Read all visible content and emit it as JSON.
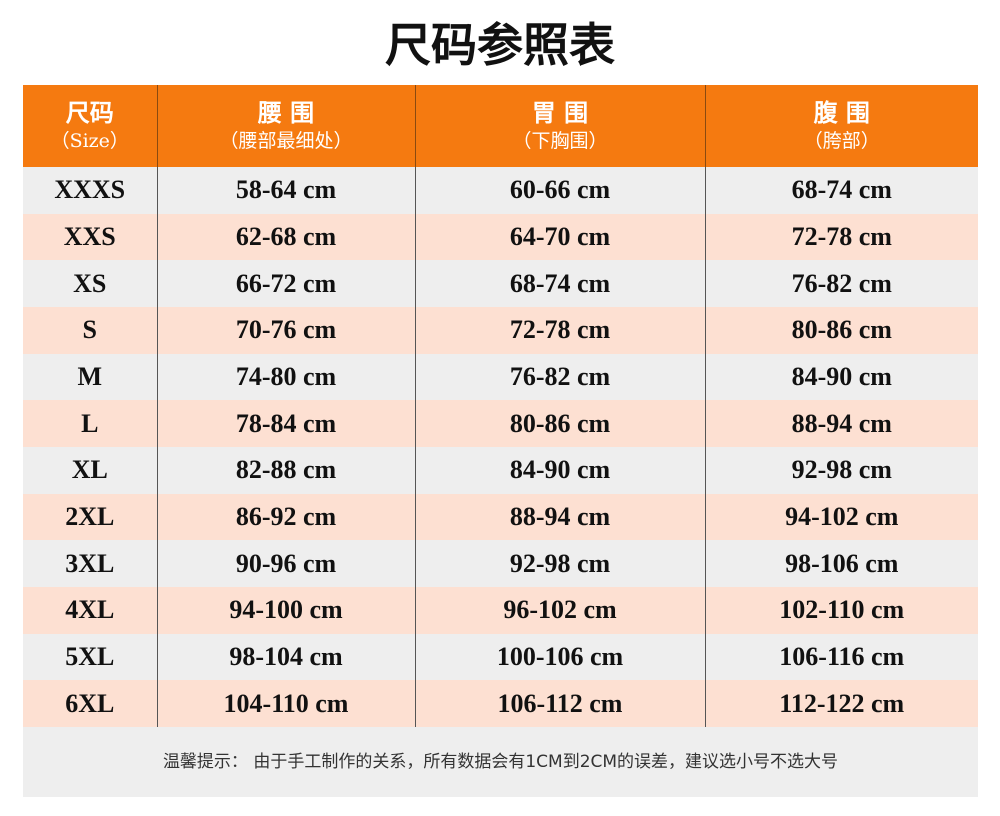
{
  "header": {
    "title": "尺码参照表"
  },
  "table": {
    "columns": [
      {
        "title": "尺码",
        "subtitle": "（Size）"
      },
      {
        "title": "腰 围",
        "subtitle": "（腰部最细处）"
      },
      {
        "title": "胃 围",
        "subtitle": "（下胸围）"
      },
      {
        "title": "腹 围",
        "subtitle": "（胯部）"
      }
    ],
    "rows": [
      [
        "XXXS",
        "58-64 cm",
        "60-66 cm",
        "68-74 cm"
      ],
      [
        "XXS",
        "62-68 cm",
        "64-70 cm",
        "72-78 cm"
      ],
      [
        "XS",
        "66-72 cm",
        "68-74 cm",
        "76-82 cm"
      ],
      [
        "S",
        "70-76 cm",
        "72-78 cm",
        "80-86 cm"
      ],
      [
        "M",
        "74-80 cm",
        "76-82 cm",
        "84-90 cm"
      ],
      [
        "L",
        "78-84 cm",
        "80-86 cm",
        "88-94 cm"
      ],
      [
        "XL",
        "82-88 cm",
        "84-90 cm",
        "92-98 cm"
      ],
      [
        "2XL",
        "86-92 cm",
        "88-94 cm",
        "94-102 cm"
      ],
      [
        "3XL",
        "90-96 cm",
        "92-98 cm",
        "98-106 cm"
      ],
      [
        "4XL",
        "94-100 cm",
        "96-102 cm",
        "102-110 cm"
      ],
      [
        "5XL",
        "98-104 cm",
        "100-106 cm",
        "106-116 cm"
      ],
      [
        "6XL",
        "104-110 cm",
        "106-112 cm",
        "112-122 cm"
      ]
    ]
  },
  "footer": {
    "note": "温馨提示： 由于手工制作的关系，所有数据会有1CM到2CM的误差，建议选小号不选大号"
  }
}
